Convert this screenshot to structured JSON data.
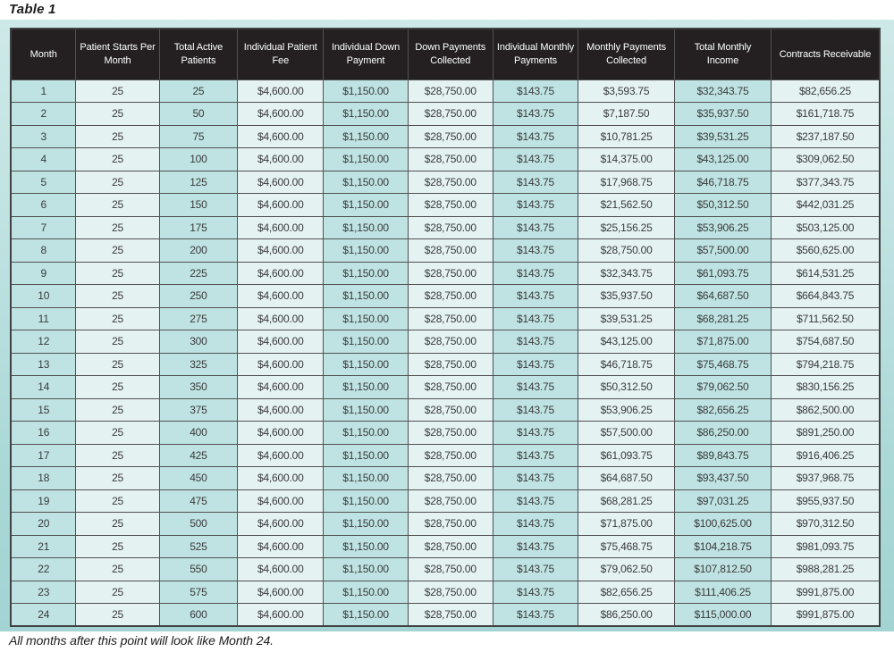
{
  "title": "Table 1",
  "footnote": "All months after this point will look like Month 24.",
  "colors": {
    "header_bg": "#242021",
    "header_text": "#ffffff",
    "cell_teal": "#bfe3e2",
    "cell_light": "#e4f2f2",
    "grid_border": "#4f5152",
    "panel_gradient_top": "#cde9e8",
    "panel_gradient_bottom": "#a3d4d3",
    "body_text": "#3a3a3c"
  },
  "table": {
    "columns": [
      "Month",
      "Patient Starts Per Month",
      "Total Active Patients",
      "Individual Patient Fee",
      "Individual Down Payment",
      "Down Payments Collected",
      "Individual Monthly Payments",
      "Monthly Payments Collected",
      "Total Monthly Income",
      "Contracts Receivable"
    ],
    "rows": [
      [
        "1",
        "25",
        "25",
        "$4,600.00",
        "$1,150.00",
        "$28,750.00",
        "$143.75",
        "$3,593.75",
        "$32,343.75",
        "$82,656.25"
      ],
      [
        "2",
        "25",
        "50",
        "$4,600.00",
        "$1,150.00",
        "$28,750.00",
        "$143.75",
        "$7,187.50",
        "$35,937.50",
        "$161,718.75"
      ],
      [
        "3",
        "25",
        "75",
        "$4,600.00",
        "$1,150.00",
        "$28,750.00",
        "$143.75",
        "$10,781.25",
        "$39,531.25",
        "$237,187.50"
      ],
      [
        "4",
        "25",
        "100",
        "$4,600.00",
        "$1,150.00",
        "$28,750.00",
        "$143.75",
        "$14,375.00",
        "$43,125.00",
        "$309,062.50"
      ],
      [
        "5",
        "25",
        "125",
        "$4,600.00",
        "$1,150.00",
        "$28,750.00",
        "$143.75",
        "$17,968.75",
        "$46,718.75",
        "$377,343.75"
      ],
      [
        "6",
        "25",
        "150",
        "$4,600.00",
        "$1,150.00",
        "$28,750.00",
        "$143.75",
        "$21,562.50",
        "$50,312.50",
        "$442,031.25"
      ],
      [
        "7",
        "25",
        "175",
        "$4,600.00",
        "$1,150.00",
        "$28,750.00",
        "$143.75",
        "$25,156.25",
        "$53,906.25",
        "$503,125.00"
      ],
      [
        "8",
        "25",
        "200",
        "$4,600.00",
        "$1,150.00",
        "$28,750.00",
        "$143.75",
        "$28,750.00",
        "$57,500.00",
        "$560,625.00"
      ],
      [
        "9",
        "25",
        "225",
        "$4,600.00",
        "$1,150.00",
        "$28,750.00",
        "$143.75",
        "$32,343.75",
        "$61,093.75",
        "$614,531.25"
      ],
      [
        "10",
        "25",
        "250",
        "$4,600.00",
        "$1,150.00",
        "$28,750.00",
        "$143.75",
        "$35,937.50",
        "$64,687.50",
        "$664,843.75"
      ],
      [
        "11",
        "25",
        "275",
        "$4,600.00",
        "$1,150.00",
        "$28,750.00",
        "$143.75",
        "$39,531.25",
        "$68,281.25",
        "$711,562.50"
      ],
      [
        "12",
        "25",
        "300",
        "$4,600.00",
        "$1,150.00",
        "$28,750.00",
        "$143.75",
        "$43,125.00",
        "$71,875.00",
        "$754,687.50"
      ],
      [
        "13",
        "25",
        "325",
        "$4,600.00",
        "$1,150.00",
        "$28,750.00",
        "$143.75",
        "$46,718.75",
        "$75,468.75",
        "$794,218.75"
      ],
      [
        "14",
        "25",
        "350",
        "$4,600.00",
        "$1,150.00",
        "$28,750.00",
        "$143.75",
        "$50,312.50",
        "$79,062.50",
        "$830,156.25"
      ],
      [
        "15",
        "25",
        "375",
        "$4,600.00",
        "$1,150.00",
        "$28,750.00",
        "$143.75",
        "$53,906.25",
        "$82,656.25",
        "$862,500.00"
      ],
      [
        "16",
        "25",
        "400",
        "$4,600.00",
        "$1,150.00",
        "$28,750.00",
        "$143.75",
        "$57,500.00",
        "$86,250.00",
        "$891,250.00"
      ],
      [
        "17",
        "25",
        "425",
        "$4,600.00",
        "$1,150.00",
        "$28,750.00",
        "$143.75",
        "$61,093.75",
        "$89,843.75",
        "$916,406.25"
      ],
      [
        "18",
        "25",
        "450",
        "$4,600.00",
        "$1,150.00",
        "$28,750.00",
        "$143.75",
        "$64,687.50",
        "$93,437.50",
        "$937,968.75"
      ],
      [
        "19",
        "25",
        "475",
        "$4,600.00",
        "$1,150.00",
        "$28,750.00",
        "$143.75",
        "$68,281.25",
        "$97,031.25",
        "$955,937.50"
      ],
      [
        "20",
        "25",
        "500",
        "$4,600.00",
        "$1,150.00",
        "$28,750.00",
        "$143.75",
        "$71,875.00",
        "$100,625.00",
        "$970,312.50"
      ],
      [
        "21",
        "25",
        "525",
        "$4,600.00",
        "$1,150.00",
        "$28,750.00",
        "$143.75",
        "$75,468.75",
        "$104,218.75",
        "$981,093.75"
      ],
      [
        "22",
        "25",
        "550",
        "$4,600.00",
        "$1,150.00",
        "$28,750.00",
        "$143.75",
        "$79,062.50",
        "$107,812.50",
        "$988,281.25"
      ],
      [
        "23",
        "25",
        "575",
        "$4,600.00",
        "$1,150.00",
        "$28,750.00",
        "$143.75",
        "$82,656.25",
        "$111,406.25",
        "$991,875.00"
      ],
      [
        "24",
        "25",
        "600",
        "$4,600.00",
        "$1,150.00",
        "$28,750.00",
        "$143.75",
        "$86,250.00",
        "$115,000.00",
        "$991,875.00"
      ]
    ]
  }
}
